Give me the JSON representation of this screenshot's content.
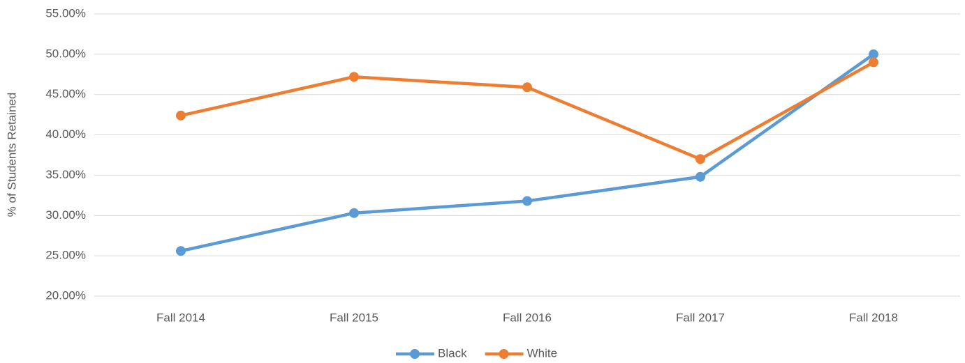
{
  "chart_data": {
    "type": "line",
    "ylabel": "% of Students Retained",
    "categories": [
      "Fall 2014",
      "Fall 2015",
      "Fall 2016",
      "Fall 2017",
      "Fall 2018"
    ],
    "series": [
      {
        "name": "Black",
        "color": "#5b9bd5",
        "values": [
          25.6,
          30.3,
          31.8,
          34.8,
          50.0
        ]
      },
      {
        "name": "White",
        "color": "#ed7d31",
        "values": [
          42.4,
          47.2,
          45.9,
          37.0,
          49.0
        ]
      }
    ],
    "ylim": [
      20,
      55
    ],
    "yticks": [
      {
        "value": 20,
        "label": "20.00%"
      },
      {
        "value": 25,
        "label": "25.00%"
      },
      {
        "value": 30,
        "label": "30.00%"
      },
      {
        "value": 35,
        "label": "35.00%"
      },
      {
        "value": 40,
        "label": "40.00%"
      },
      {
        "value": 45,
        "label": "45.00%"
      },
      {
        "value": 50,
        "label": "50.00%"
      },
      {
        "value": 55,
        "label": "55.00%"
      }
    ],
    "grid": true,
    "legend": "bottom"
  }
}
